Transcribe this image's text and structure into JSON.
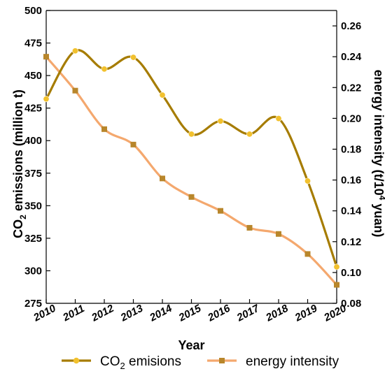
{
  "chart_data": {
    "type": "line",
    "x": [
      2010,
      2011,
      2012,
      2013,
      2014,
      2015,
      2016,
      2017,
      2018,
      2019,
      2020
    ],
    "xlabel": "Year",
    "ylabel_left": {
      "base": "CO",
      "sub": "2",
      "rest": " emissions (million t)"
    },
    "ylabel_right": {
      "base": "energy intensity (t/10",
      "sup": "4",
      "rest": " yuan)"
    },
    "ylim_left": [
      275,
      500
    ],
    "yticks_left": [
      275,
      300,
      325,
      350,
      375,
      400,
      425,
      450,
      475,
      500
    ],
    "ylim_right": [
      0.08,
      0.27
    ],
    "yticks_right": [
      0.08,
      0.1,
      0.12,
      0.14,
      0.16,
      0.18,
      0.2,
      0.22,
      0.24,
      0.26
    ],
    "series": [
      {
        "name": {
          "base": "CO",
          "sub": "2",
          "rest": " emisions"
        },
        "axis": "left",
        "color": "#A67C00",
        "marker": "circle",
        "marker_color": "#F2C12E",
        "values": [
          432,
          469,
          455,
          464,
          435,
          405,
          415,
          405,
          417,
          369,
          303
        ]
      },
      {
        "name": {
          "base": "energy intensity"
        },
        "axis": "right",
        "color": "#F4A86E",
        "marker": "square",
        "marker_color": "#B8862B",
        "values": [
          0.24,
          0.218,
          0.193,
          0.183,
          0.161,
          0.149,
          0.14,
          0.129,
          0.125,
          0.112,
          0.092
        ]
      }
    ],
    "legend": "bottom",
    "grid": false
  }
}
